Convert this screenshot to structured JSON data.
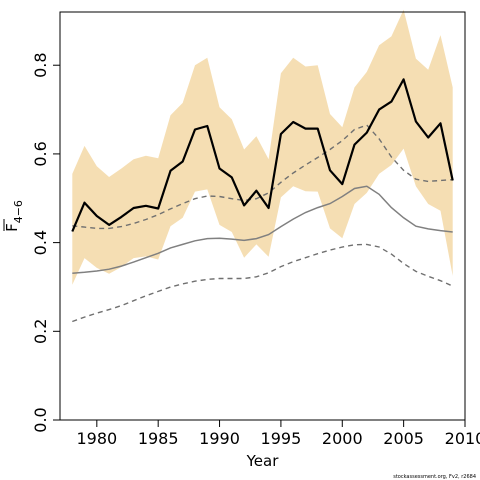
{
  "chart_data": {
    "type": "line",
    "xlabel": "Year",
    "ylabel_main": "F",
    "ylabel_sub": "4−6",
    "xlim": [
      1977,
      2010
    ],
    "ylim": [
      0,
      0.92
    ],
    "x_ticks": [
      1980,
      1985,
      1990,
      1995,
      2000,
      2005,
      2010
    ],
    "x_tick_labels": [
      "1980",
      "1985",
      "1990",
      "1995",
      "2000",
      "2005",
      "2010"
    ],
    "y_ticks": [
      0.0,
      0.2,
      0.4,
      0.6,
      0.8
    ],
    "y_tick_labels": [
      "0.0",
      "0.2",
      "0.4",
      "0.6",
      "0.8"
    ],
    "credit": "stockassessment.org, Fv2, r2684",
    "colors": {
      "band": "#f5deb3",
      "estimate": "#000000",
      "reference": "#808080",
      "reference_bounds": "#707070"
    },
    "x": [
      1978,
      1979,
      1980,
      1981,
      1982,
      1983,
      1984,
      1985,
      1986,
      1987,
      1988,
      1989,
      1990,
      1991,
      1992,
      1993,
      1994,
      1995,
      1996,
      1997,
      1998,
      1999,
      2000,
      2001,
      2002,
      2003,
      2004,
      2005,
      2006,
      2007,
      2008,
      2009
    ],
    "series": [
      {
        "values": [
          0.425,
          0.49,
          0.46,
          0.44,
          0.458,
          0.478,
          0.483,
          0.477,
          0.562,
          0.583,
          0.655,
          0.663,
          0.567,
          0.547,
          0.484,
          0.517,
          0.478,
          0.645,
          0.672,
          0.657,
          0.657,
          0.563,
          0.532,
          0.621,
          0.648,
          0.7,
          0.718,
          0.768,
          0.673,
          0.637,
          0.669,
          0.54
        ]
      },
      {
        "values": [
          0.555,
          0.618,
          0.572,
          0.548,
          0.567,
          0.588,
          0.596,
          0.59,
          0.687,
          0.715,
          0.8,
          0.817,
          0.705,
          0.678,
          0.61,
          0.64,
          0.588,
          0.782,
          0.817,
          0.797,
          0.8,
          0.69,
          0.66,
          0.75,
          0.785,
          0.845,
          0.865,
          0.925,
          0.815,
          0.79,
          0.868,
          0.75
        ]
      },
      {
        "values": [
          0.305,
          0.365,
          0.343,
          0.33,
          0.345,
          0.365,
          0.369,
          0.362,
          0.437,
          0.456,
          0.515,
          0.52,
          0.44,
          0.424,
          0.366,
          0.396,
          0.368,
          0.502,
          0.527,
          0.516,
          0.515,
          0.432,
          0.41,
          0.487,
          0.512,
          0.555,
          0.575,
          0.612,
          0.527,
          0.487,
          0.472,
          0.325
        ]
      },
      {
        "values": [
          0.331,
          0.333,
          0.336,
          0.34,
          0.347,
          0.356,
          0.366,
          0.376,
          0.388,
          0.396,
          0.404,
          0.409,
          0.41,
          0.408,
          0.405,
          0.409,
          0.418,
          0.436,
          0.453,
          0.468,
          0.479,
          0.488,
          0.504,
          0.522,
          0.527,
          0.509,
          0.479,
          0.456,
          0.437,
          0.431,
          0.427,
          0.424
        ]
      },
      {
        "values": [
          0.438,
          0.435,
          0.432,
          0.432,
          0.436,
          0.443,
          0.452,
          0.463,
          0.476,
          0.488,
          0.499,
          0.505,
          0.504,
          0.499,
          0.495,
          0.499,
          0.512,
          0.536,
          0.557,
          0.575,
          0.592,
          0.61,
          0.63,
          0.655,
          0.665,
          0.634,
          0.593,
          0.563,
          0.543,
          0.538,
          0.54,
          0.542
        ]
      },
      {
        "values": [
          0.222,
          0.232,
          0.241,
          0.249,
          0.258,
          0.269,
          0.28,
          0.29,
          0.3,
          0.307,
          0.313,
          0.317,
          0.319,
          0.319,
          0.319,
          0.323,
          0.332,
          0.346,
          0.357,
          0.366,
          0.375,
          0.383,
          0.39,
          0.395,
          0.396,
          0.39,
          0.374,
          0.353,
          0.335,
          0.324,
          0.314,
          0.302
        ]
      }
    ]
  }
}
